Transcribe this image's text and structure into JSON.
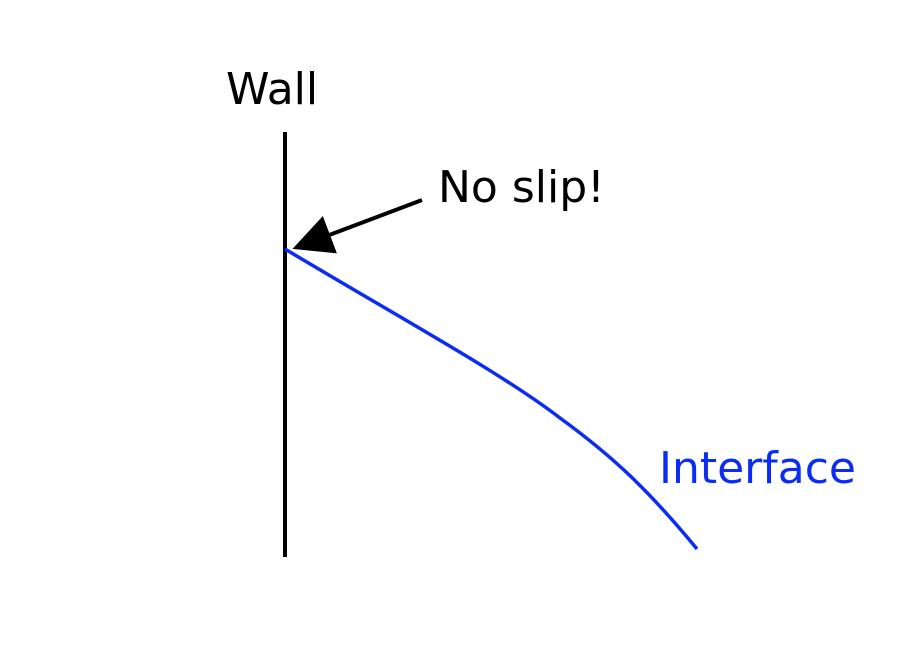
{
  "labels": {
    "wall": "Wall",
    "no_slip": "No slip!",
    "interface": "Interface"
  },
  "colors": {
    "wall_line": "#000000",
    "arrow": "#000000",
    "interface": "#0a2cf5"
  }
}
